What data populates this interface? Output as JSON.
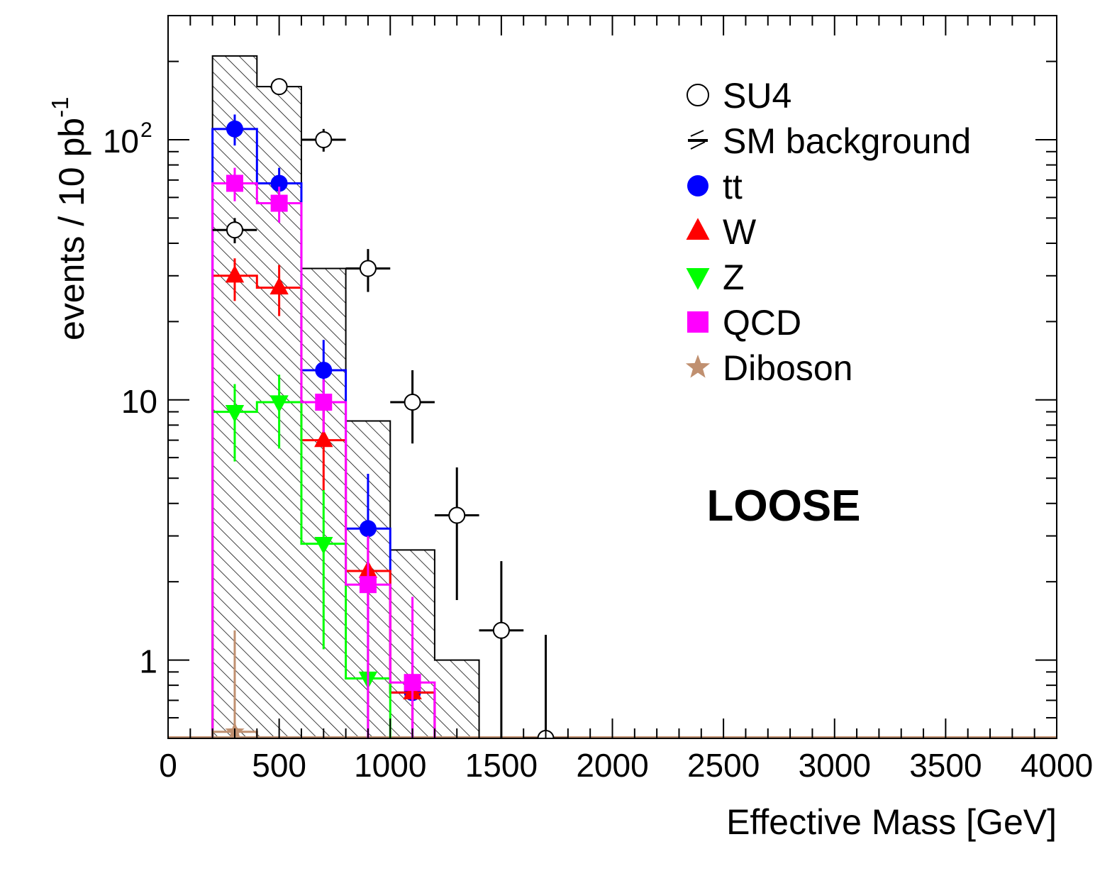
{
  "chart_data": {
    "type": "histogram",
    "title": "",
    "xlabel": "Effective Mass [GeV]",
    "ylabel_main": "events / 10 pb",
    "ylabel_exp": "-1",
    "annotation": "LOOSE",
    "xlim": [
      0,
      4000
    ],
    "ylim": [
      0.5,
      300
    ],
    "log_y": true,
    "grid": false,
    "legend_position": "top-right",
    "x_ticks": [
      0,
      500,
      1000,
      1500,
      2000,
      2500,
      3000,
      3500,
      4000
    ],
    "x_tick_labels": [
      "0",
      "500",
      "1000",
      "1500",
      "2000",
      "2500",
      "3000",
      "3500",
      "4000"
    ],
    "y_tick_labels": {
      "1": "1",
      "10": "10",
      "100_base": "10",
      "100_exp": "2"
    },
    "sm_background": {
      "name": "SM background",
      "color": "#000000",
      "edges": [
        200,
        400,
        600,
        800,
        1000,
        1200,
        1400
      ],
      "values": [
        210,
        160,
        32,
        8.3,
        2.65,
        1.0
      ]
    },
    "series": [
      {
        "name": "tt",
        "color": "#0000ff",
        "marker": "circle",
        "edges": [
          200,
          400,
          600,
          800,
          1000,
          1200
        ],
        "values": [
          110,
          68,
          13,
          3.2,
          0.75
        ],
        "errors": [
          [
            95,
            125
          ],
          [
            60,
            78
          ],
          [
            8.5,
            17
          ],
          [
            0.5,
            5.2
          ],
          [
            0.5,
            1.1
          ]
        ]
      },
      {
        "name": "W",
        "color": "#ff0000",
        "marker": "triangle-up",
        "edges": [
          200,
          400,
          600,
          800,
          1000,
          1200
        ],
        "values": [
          30,
          27,
          7,
          2.2,
          0.75
        ],
        "errors": [
          [
            24,
            35
          ],
          [
            21,
            33
          ],
          [
            4.5,
            9.5
          ],
          [
            1.7,
            2.7
          ],
          [
            0.55,
            0.95
          ]
        ]
      },
      {
        "name": "Z",
        "color": "#00ff00",
        "marker": "triangle-down",
        "edges": [
          200,
          400,
          600,
          800,
          1000
        ],
        "values": [
          9,
          9.8,
          2.8,
          0.85
        ],
        "errors": [
          [
            5.8,
            11.5
          ],
          [
            6.5,
            12.5
          ],
          [
            1.1,
            4.5
          ],
          [
            0.55,
            1.15
          ]
        ]
      },
      {
        "name": "QCD",
        "color": "#ff00ff",
        "marker": "square",
        "edges": [
          200,
          400,
          600,
          800,
          1000,
          1200
        ],
        "values": [
          68,
          57,
          9.8,
          1.95,
          0.82
        ],
        "errors": [
          [
            58,
            78
          ],
          [
            48,
            66
          ],
          [
            7.5,
            12
          ],
          [
            0.5,
            3
          ],
          [
            0.5,
            1.75
          ]
        ]
      },
      {
        "name": "Diboson",
        "color": "#c09070",
        "marker": "star",
        "edges": [
          200,
          400
        ],
        "values": [
          0.53
        ],
        "errors": [
          [
            0.5,
            1.3
          ]
        ]
      }
    ],
    "su4": {
      "name": "SU4",
      "points": [
        {
          "x": 300,
          "y": 45,
          "xerr": 100,
          "err": [
            40,
            50
          ]
        },
        {
          "x": 500,
          "y": 160,
          "xerr": 0,
          "err": [
            155,
            165
          ]
        },
        {
          "x": 700,
          "y": 100,
          "xerr": 100,
          "err": [
            90,
            110
          ]
        },
        {
          "x": 900,
          "y": 32,
          "xerr": 100,
          "err": [
            26,
            38
          ]
        },
        {
          "x": 1100,
          "y": 9.8,
          "xerr": 100,
          "err": [
            6.8,
            13
          ]
        },
        {
          "x": 1300,
          "y": 3.6,
          "xerr": 100,
          "err": [
            1.7,
            5.5
          ]
        },
        {
          "x": 1500,
          "y": 1.3,
          "xerr": 100,
          "err": [
            0.5,
            2.4
          ]
        },
        {
          "x": 1700,
          "y": 0.5,
          "xerr": 100,
          "err": [
            0.5,
            1.25
          ]
        }
      ]
    }
  }
}
